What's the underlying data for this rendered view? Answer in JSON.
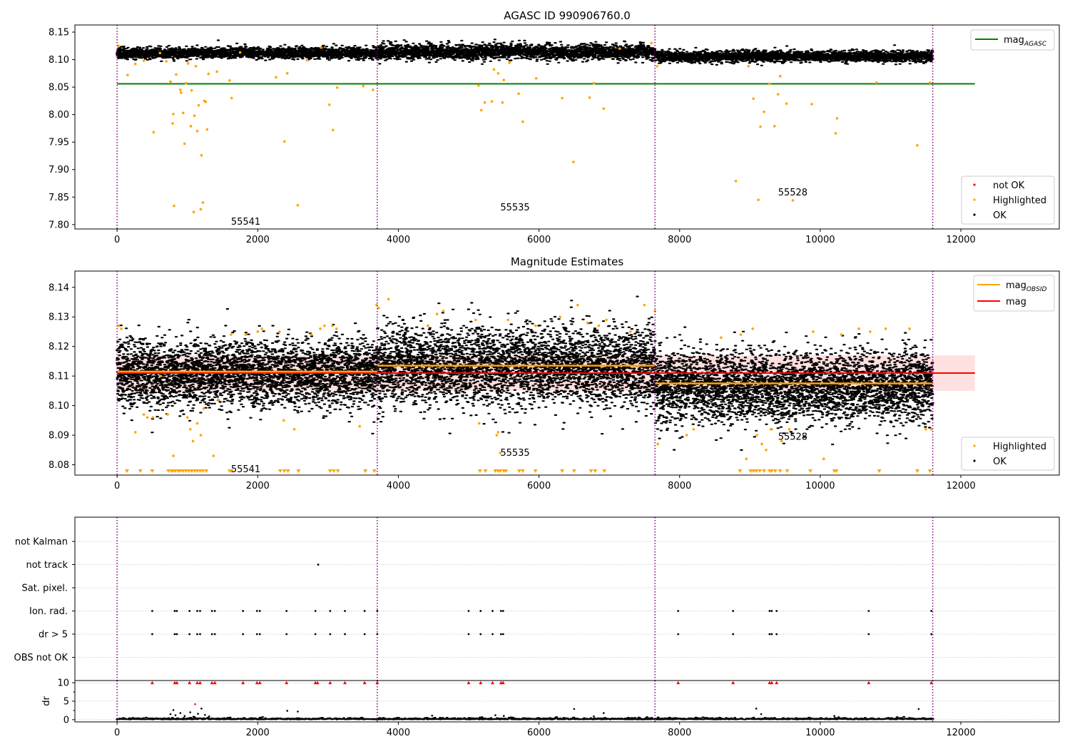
{
  "chart_data": [
    {
      "type": "scatter",
      "title": "AGASC ID 990906760.0",
      "xlim": [
        -600,
        13400
      ],
      "ylim": [
        7.792,
        8.163
      ],
      "x_ticks": [
        0,
        2000,
        4000,
        6000,
        8000,
        10000,
        12000
      ],
      "x_tick_labels": [
        "0",
        "2000",
        "4000",
        "6000",
        "8000",
        "10000",
        "12000"
      ],
      "y_ticks": [
        7.8,
        7.85,
        7.9,
        7.95,
        8.0,
        8.05,
        8.1,
        8.15
      ],
      "y_tick_labels": [
        "7.80",
        "7.85",
        "7.90",
        "7.95",
        "8.00",
        "8.05",
        "8.10",
        "8.15"
      ],
      "obsid_boundaries": [
        0,
        3700,
        7650,
        11600
      ],
      "obsid_labels": [
        {
          "text": "55541",
          "x": 1620,
          "y": 7.8
        },
        {
          "text": "55535",
          "x": 5450,
          "y": 7.826
        },
        {
          "text": "55528",
          "x": 9400,
          "y": 7.853
        }
      ],
      "mag_agasc": {
        "value": 8.056,
        "x_range": [
          0,
          12200
        ],
        "color": "#008000"
      },
      "ok_band_segments": [
        {
          "x_range": [
            0,
            3700
          ],
          "center": 8.112,
          "spread": 0.005
        },
        {
          "x_range": [
            3700,
            7650
          ],
          "center": 8.114,
          "spread": 0.007
        },
        {
          "x_range": [
            7650,
            11600
          ],
          "center": 8.106,
          "spread": 0.005
        }
      ],
      "highlighted_points": [
        [
          20,
          8.125
        ],
        [
          150,
          8.072
        ],
        [
          260,
          8.092
        ],
        [
          380,
          8.098
        ],
        [
          520,
          7.968
        ],
        [
          610,
          8.112
        ],
        [
          700,
          8.097
        ],
        [
          760,
          8.06
        ],
        [
          790,
          7.984
        ],
        [
          800,
          8.001
        ],
        [
          810,
          7.834
        ],
        [
          840,
          8.073
        ],
        [
          900,
          8.045
        ],
        [
          910,
          8.04
        ],
        [
          940,
          8.003
        ],
        [
          960,
          7.947
        ],
        [
          980,
          8.057
        ],
        [
          1010,
          8.093
        ],
        [
          1050,
          7.979
        ],
        [
          1060,
          8.044
        ],
        [
          1090,
          7.823
        ],
        [
          1100,
          7.998
        ],
        [
          1120,
          8.088
        ],
        [
          1140,
          7.97
        ],
        [
          1160,
          8.017
        ],
        [
          1190,
          7.828
        ],
        [
          1200,
          7.926
        ],
        [
          1220,
          7.84
        ],
        [
          1240,
          8.025
        ],
        [
          1260,
          8.023
        ],
        [
          1280,
          7.973
        ],
        [
          1300,
          8.074
        ],
        [
          1420,
          8.078
        ],
        [
          1600,
          8.062
        ],
        [
          1630,
          8.03
        ],
        [
          1750,
          8.113
        ],
        [
          2260,
          8.068
        ],
        [
          2380,
          7.951
        ],
        [
          2420,
          8.075
        ],
        [
          2570,
          7.835
        ],
        [
          2700,
          8.099
        ],
        [
          2900,
          8.122
        ],
        [
          3020,
          8.018
        ],
        [
          3070,
          7.972
        ],
        [
          3130,
          8.049
        ],
        [
          3500,
          8.052
        ],
        [
          3640,
          8.045
        ],
        [
          5140,
          8.053
        ],
        [
          5180,
          8.008
        ],
        [
          5230,
          8.022
        ],
        [
          5330,
          8.024
        ],
        [
          5360,
          8.082
        ],
        [
          5420,
          8.075
        ],
        [
          5480,
          8.022
        ],
        [
          5500,
          8.063
        ],
        [
          5580,
          8.094
        ],
        [
          5710,
          8.038
        ],
        [
          5770,
          7.987
        ],
        [
          5960,
          8.066
        ],
        [
          6330,
          8.03
        ],
        [
          6490,
          7.914
        ],
        [
          6720,
          8.031
        ],
        [
          6780,
          8.057
        ],
        [
          6920,
          8.011
        ],
        [
          7150,
          8.12
        ],
        [
          7600,
          8.13
        ],
        [
          7680,
          8.088
        ],
        [
          8800,
          7.879
        ],
        [
          8980,
          8.088
        ],
        [
          9050,
          8.029
        ],
        [
          9120,
          7.845
        ],
        [
          9150,
          7.978
        ],
        [
          9200,
          8.005
        ],
        [
          9280,
          8.056
        ],
        [
          9350,
          7.979
        ],
        [
          9400,
          8.037
        ],
        [
          9430,
          8.07
        ],
        [
          9520,
          8.02
        ],
        [
          9610,
          7.844
        ],
        [
          9880,
          8.019
        ],
        [
          10220,
          7.966
        ],
        [
          10240,
          7.993
        ],
        [
          10800,
          8.058
        ],
        [
          11380,
          7.944
        ],
        [
          11560,
          8.058
        ]
      ],
      "legend": [
        {
          "label": "not OK",
          "color": "#ff0000",
          "marker": "dot"
        },
        {
          "label": "Highlighted",
          "color": "#ffa500",
          "marker": "dot"
        },
        {
          "label": "OK",
          "color": "#000000",
          "marker": "dot"
        }
      ],
      "legend_line": {
        "label_base": "mag",
        "label_sub": "AGASC",
        "color": "#008000"
      }
    },
    {
      "type": "scatter",
      "title": "Magnitude Estimates",
      "xlim": [
        -600,
        13400
      ],
      "ylim": [
        8.0765,
        8.1455
      ],
      "x_ticks": [
        0,
        2000,
        4000,
        6000,
        8000,
        10000,
        12000
      ],
      "x_tick_labels": [
        "0",
        "2000",
        "4000",
        "6000",
        "8000",
        "10000",
        "12000"
      ],
      "y_ticks": [
        8.08,
        8.09,
        8.1,
        8.11,
        8.12,
        8.13,
        8.14
      ],
      "y_tick_labels": [
        "8.08",
        "8.09",
        "8.10",
        "8.11",
        "8.12",
        "8.13",
        "8.14"
      ],
      "obsid_boundaries": [
        0,
        3700,
        7650,
        11600
      ],
      "obsid_labels": [
        {
          "text": "55541",
          "x": 1620,
          "y": 8.0775
        },
        {
          "text": "55535",
          "x": 5450,
          "y": 8.083
        },
        {
          "text": "55528",
          "x": 9400,
          "y": 8.0885
        }
      ],
      "mag": {
        "value": 8.111,
        "x_range": [
          0,
          12200
        ],
        "band": [
          8.105,
          8.117
        ],
        "color": "#ff0000"
      },
      "mag_obsid": [
        {
          "x_range": [
            0,
            3700
          ],
          "value": 8.1115
        },
        {
          "x_range": [
            3700,
            7650
          ],
          "value": 8.1135
        },
        {
          "x_range": [
            7650,
            11600
          ],
          "value": 8.1075
        }
      ],
      "ok_band_segments": [
        {
          "x_range": [
            0,
            3700
          ],
          "center": 8.111,
          "spread": 0.0055
        },
        {
          "x_range": [
            3700,
            7650
          ],
          "center": 8.1135,
          "spread": 0.0065
        },
        {
          "x_range": [
            7650,
            11600
          ],
          "center": 8.1065,
          "spread": 0.006
        }
      ],
      "highlighted_points": [
        [
          20,
          8.127
        ],
        [
          60,
          8.126
        ],
        [
          260,
          8.091
        ],
        [
          380,
          8.097
        ],
        [
          430,
          8.096
        ],
        [
          510,
          8.096
        ],
        [
          620,
          8.11
        ],
        [
          720,
          8.097
        ],
        [
          800,
          8.083
        ],
        [
          1000,
          8.096
        ],
        [
          1040,
          8.092
        ],
        [
          1080,
          8.088
        ],
        [
          1140,
          8.094
        ],
        [
          1190,
          8.09
        ],
        [
          1230,
          8.099
        ],
        [
          1370,
          8.083
        ],
        [
          1440,
          8.102
        ],
        [
          1620,
          8.124
        ],
        [
          1830,
          8.124
        ],
        [
          2000,
          8.125
        ],
        [
          2060,
          8.126
        ],
        [
          2310,
          8.125
        ],
        [
          2370,
          8.095
        ],
        [
          2520,
          8.092
        ],
        [
          2760,
          8.124
        ],
        [
          2890,
          8.126
        ],
        [
          2950,
          8.127
        ],
        [
          3060,
          8.127
        ],
        [
          3120,
          8.126
        ],
        [
          3450,
          8.093
        ],
        [
          3690,
          8.134
        ],
        [
          3720,
          8.133
        ],
        [
          3860,
          8.136
        ],
        [
          4420,
          8.127
        ],
        [
          4550,
          8.131
        ],
        [
          4640,
          8.132
        ],
        [
          5100,
          8.129
        ],
        [
          5150,
          8.094
        ],
        [
          5400,
          8.09
        ],
        [
          5420,
          8.091
        ],
        [
          5450,
          8.084
        ],
        [
          5560,
          8.129
        ],
        [
          5950,
          8.127
        ],
        [
          6300,
          8.13
        ],
        [
          6550,
          8.134
        ],
        [
          6690,
          8.128
        ],
        [
          6850,
          8.127
        ],
        [
          6960,
          8.129
        ],
        [
          7300,
          8.125
        ],
        [
          7500,
          8.134
        ],
        [
          7650,
          8.132
        ],
        [
          7690,
          8.087
        ],
        [
          8100,
          8.09
        ],
        [
          8200,
          8.092
        ],
        [
          8590,
          8.123
        ],
        [
          8870,
          8.124
        ],
        [
          8950,
          8.082
        ],
        [
          9040,
          8.126
        ],
        [
          9100,
          8.09
        ],
        [
          9170,
          8.087
        ],
        [
          9230,
          8.085
        ],
        [
          9300,
          8.092
        ],
        [
          9450,
          8.088
        ],
        [
          9560,
          8.092
        ],
        [
          9900,
          8.125
        ],
        [
          10050,
          8.082
        ],
        [
          10300,
          8.124
        ],
        [
          10550,
          8.126
        ],
        [
          10710,
          8.125
        ],
        [
          10930,
          8.126
        ],
        [
          11270,
          8.126
        ],
        [
          11500,
          8.092
        ],
        [
          11580,
          8.092
        ]
      ],
      "clipped_low_x": [
        140,
        330,
        500,
        730,
        770,
        800,
        830,
        870,
        900,
        940,
        980,
        1020,
        1060,
        1100,
        1140,
        1180,
        1220,
        1270,
        1600,
        1630,
        2320,
        2380,
        2430,
        2580,
        3030,
        3080,
        3140,
        3530,
        3660,
        5160,
        5240,
        5380,
        5420,
        5450,
        5500,
        5530,
        5720,
        5770,
        5950,
        6330,
        6500,
        6740,
        6800,
        6930,
        8860,
        9010,
        9050,
        9090,
        9140,
        9200,
        9280,
        9310,
        9360,
        9430,
        9530,
        9860,
        10200,
        10230,
        10840,
        11380,
        11560
      ],
      "legend": [
        {
          "label": "Highlighted",
          "color": "#ffa500",
          "marker": "dot"
        },
        {
          "label": "OK",
          "color": "#000000",
          "marker": "dot"
        }
      ],
      "legend_lines": [
        {
          "label_base": "mag",
          "label_sub": "OBSID",
          "color": "#ffa500"
        },
        {
          "label_base": "mag",
          "label_sub": "",
          "color": "#ff0000"
        }
      ]
    },
    {
      "type": "scatter",
      "title": "",
      "xlim": [
        -600,
        13400
      ],
      "x_ticks": [
        0,
        2000,
        4000,
        6000,
        8000,
        10000,
        12000
      ],
      "x_tick_labels": [
        "0",
        "2000",
        "4000",
        "6000",
        "8000",
        "10000",
        "12000"
      ],
      "obsid_boundaries": [
        0,
        3700,
        7650,
        11600
      ],
      "flag_rows": [
        "not Kalman",
        "not track",
        "Sat. pixel.",
        "Ion. rad.",
        "dr > 5",
        "OBS not OK"
      ],
      "flag_points": {
        "not track": [
          2860
        ],
        "Ion. rad.": [
          500,
          820,
          850,
          1030,
          1140,
          1180,
          1350,
          1390,
          1790,
          1990,
          2030,
          2410,
          2820,
          3030,
          3240,
          3520,
          3700,
          5000,
          5170,
          5340,
          5460,
          5490,
          7980,
          8760,
          9280,
          9310,
          9380,
          10690,
          11580
        ],
        "dr > 5": [
          500,
          820,
          850,
          1030,
          1140,
          1180,
          1350,
          1390,
          1790,
          1990,
          2030,
          2410,
          2820,
          3030,
          3240,
          3520,
          3700,
          5000,
          5170,
          5340,
          5460,
          5490,
          7980,
          8760,
          9280,
          9310,
          9380,
          10690,
          11580
        ]
      },
      "dr": {
        "ylabel": "dr",
        "ylim": [
          -0.6,
          10.6
        ],
        "y_ticks": [
          0,
          5,
          10
        ],
        "y_tick_labels": [
          "0",
          "5",
          "10"
        ],
        "clipped_high_x": [
          500,
          820,
          850,
          1030,
          1140,
          1180,
          1350,
          1390,
          1790,
          1990,
          2030,
          2410,
          2820,
          2850,
          3030,
          3240,
          3520,
          3700,
          5000,
          5170,
          5340,
          5460,
          5490,
          7980,
          8760,
          9280,
          9310,
          9380,
          10690,
          11580
        ],
        "outliers": [
          [
            760,
            1.5
          ],
          [
            800,
            2.6
          ],
          [
            830,
            1.2
          ],
          [
            900,
            1.8
          ],
          [
            960,
            1.0
          ],
          [
            1040,
            2.0
          ],
          [
            1110,
            4.2
          ],
          [
            1150,
            1.6
          ],
          [
            1200,
            3.0
          ],
          [
            1250,
            1.3
          ],
          [
            1310,
            0.9
          ],
          [
            2420,
            2.4
          ],
          [
            2570,
            2.2
          ],
          [
            4480,
            1.1
          ],
          [
            5380,
            1.2
          ],
          [
            5500,
            1.0
          ],
          [
            6500,
            2.9
          ],
          [
            6780,
            0.9
          ],
          [
            6920,
            1.8
          ],
          [
            9090,
            3.0
          ],
          [
            9160,
            1.5
          ],
          [
            10200,
            1.0
          ],
          [
            11400,
            2.9
          ]
        ]
      }
    }
  ]
}
